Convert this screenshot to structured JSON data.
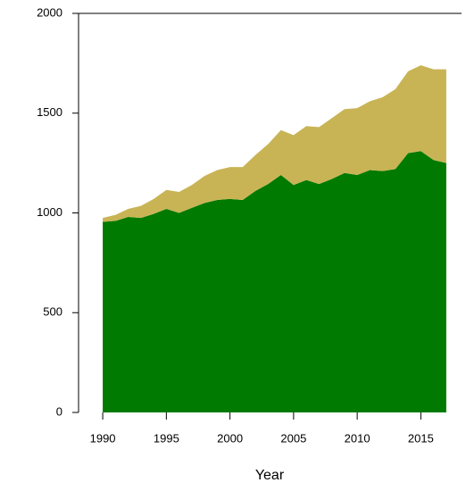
{
  "chart_data": {
    "type": "stacked_area",
    "xlabel": "Year",
    "x": [
      1990,
      1991,
      1992,
      1993,
      1994,
      1995,
      1996,
      1997,
      1998,
      1999,
      2000,
      2001,
      2002,
      2003,
      2004,
      2005,
      2006,
      2007,
      2008,
      2009,
      2010,
      2011,
      2012,
      2013,
      2014,
      2015,
      2016,
      2017
    ],
    "series": [
      {
        "color": "#007a00",
        "values": [
          955,
          960,
          980,
          975,
          995,
          1020,
          1000,
          1025,
          1050,
          1065,
          1070,
          1065,
          1110,
          1145,
          1190,
          1140,
          1165,
          1145,
          1170,
          1200,
          1190,
          1215,
          1210,
          1220,
          1300,
          1310,
          1265,
          1250
        ]
      },
      {
        "color": "#c8b455",
        "values": [
          20,
          30,
          40,
          60,
          75,
          95,
          105,
          115,
          135,
          150,
          160,
          165,
          180,
          200,
          225,
          250,
          270,
          285,
          305,
          320,
          335,
          345,
          370,
          400,
          410,
          430,
          455,
          470
        ]
      }
    ],
    "xlim": [
      1988.1,
      2018.2
    ],
    "xticks": [
      1990,
      1995,
      2000,
      2005,
      2010,
      2015
    ],
    "ylim": [
      0,
      2000
    ],
    "yticks": [
      0,
      500,
      1000,
      1500,
      2000
    ]
  }
}
